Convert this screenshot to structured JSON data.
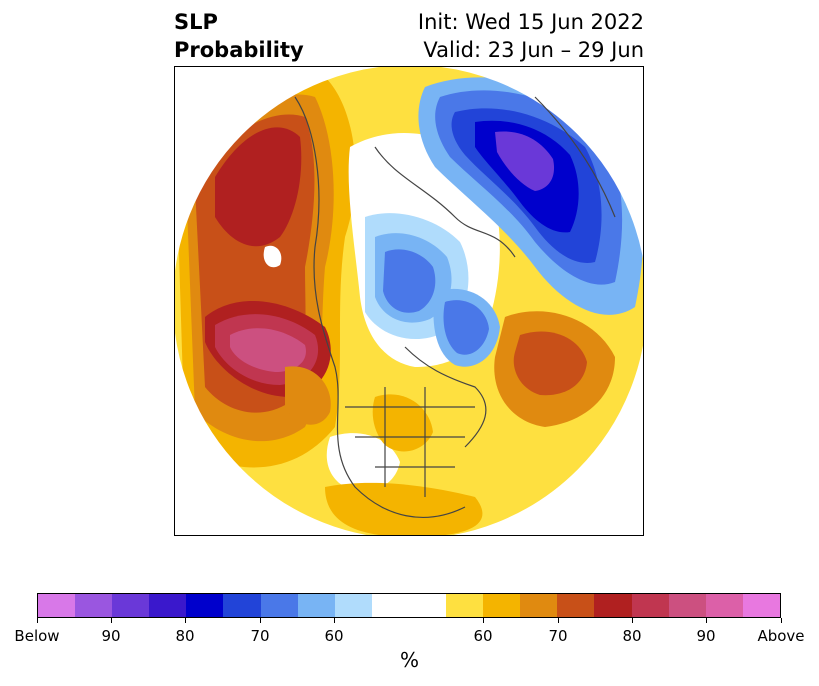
{
  "title": {
    "left_line1": "SLP",
    "left_line2": "Probability",
    "right_line1": "Init: Wed 15 Jun 2022",
    "right_line2": "Valid: 23 Jun – 29 Jun"
  },
  "colorbar": {
    "units": "%",
    "colors": [
      "#d878e8",
      "#9a56e0",
      "#6a38d8",
      "#3a18cc",
      "#0000cc",
      "#2244d8",
      "#4a78e8",
      "#78b4f4",
      "#b0dcfc",
      "#ffffff",
      "#fee040",
      "#f4b400",
      "#e08a10",
      "#c85018",
      "#b02020",
      "#c03650",
      "#cc5080",
      "#dc60a8",
      "#e878e0"
    ],
    "tick_labels": [
      "Below",
      "90",
      "80",
      "70",
      "60",
      "60",
      "70",
      "80",
      "90",
      "Above"
    ]
  },
  "map": {
    "projection": "north polar stereographic",
    "variable": "SLP"
  }
}
